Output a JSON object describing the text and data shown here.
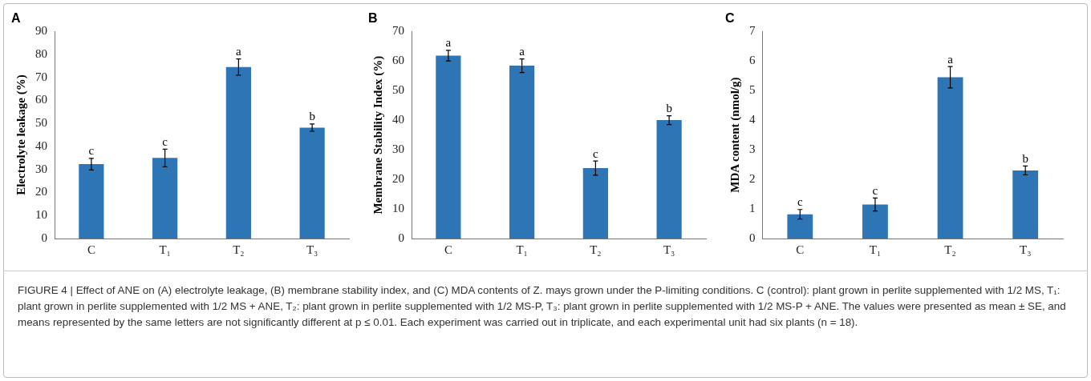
{
  "chart_data": [
    {
      "type": "bar",
      "title": "A",
      "ylabel": "Electrolyte leakage (%)",
      "categories": [
        "C",
        "T₁",
        "T₂",
        "T₃"
      ],
      "values": [
        32.3,
        35,
        74.5,
        48.2
      ],
      "errors": [
        2.5,
        3.8,
        3.5,
        1.6
      ],
      "color": "#2e75b6",
      "ylim": [
        0,
        90
      ],
      "yticks": [
        0,
        10,
        20,
        30,
        40,
        50,
        60,
        70,
        80,
        90
      ],
      "grid": false,
      "legend": false,
      "annotations": [
        {
          "text": "c",
          "x": "C",
          "y": 34.8
        },
        {
          "text": "c",
          "x": "T₁",
          "y": 38.8
        },
        {
          "text": "a",
          "x": "T₂",
          "y": 78
        },
        {
          "text": "b",
          "x": "T₃",
          "y": 49.8
        },
        "FIGURE 4 | Effect of ANE on (A) electrolyte leakage, (B) membrane stability index, and (C) MDA contents of Z. mays grown under the P-limiting conditions. C (control): plant grown in perlite supplemented with 1/2 MS, T₁: plant grown in perlite supplemented with 1/2 MS + ANE, T₂: plant grown in perlite supplemented with 1/2 MS-P, T₃: plant grown in perlite supplemented with 1/2 MS-P + ANE. The values were presented as mean ± SE, and means represented by the same letters are not significantly different at p ≤ 0.01. Each experiment was carried out in triplicate, and each experimental unit had six plants (n = 18)."
      ]
    },
    {
      "type": "bar",
      "title": "B",
      "ylabel": "Membrane Stability Index (%)",
      "categories": [
        "C",
        "T₁",
        "T₂",
        "T₃"
      ],
      "values": [
        61.8,
        58.4,
        23.8,
        40
      ],
      "errors": [
        1.8,
        2.3,
        2.4,
        1.5
      ],
      "color": "#2e75b6",
      "ylim": [
        0,
        70
      ],
      "yticks": [
        0,
        10,
        20,
        30,
        40,
        50,
        60,
        70
      ],
      "grid": false,
      "legend": false,
      "annotations": [
        {
          "text": "a",
          "x": "C",
          "y": 63.6
        },
        {
          "text": "a",
          "x": "T₁",
          "y": 60.7
        },
        {
          "text": "c",
          "x": "T₂",
          "y": 26.2
        },
        {
          "text": "b",
          "x": "T₃",
          "y": 41.5
        }
      ]
    },
    {
      "type": "bar",
      "title": "C",
      "ylabel": "MDA content (nmol/g)",
      "categories": [
        "C",
        "T₁",
        "T₂",
        "T₃"
      ],
      "values": [
        0.82,
        1.15,
        5.45,
        2.3
      ],
      "errors": [
        0.16,
        0.22,
        0.36,
        0.15
      ],
      "color": "#2e75b6",
      "ylim": [
        0,
        7
      ],
      "yticks": [
        0,
        1,
        2,
        3,
        4,
        5,
        6,
        7
      ],
      "grid": false,
      "legend": false,
      "annotations": [
        {
          "text": "c",
          "x": "C",
          "y": 0.98
        },
        {
          "text": "c",
          "x": "T₁",
          "y": 1.37
        },
        {
          "text": "a",
          "x": "T₂",
          "y": 5.81
        },
        {
          "text": "b",
          "x": "T₃",
          "y": 2.45
        }
      ]
    }
  ]
}
